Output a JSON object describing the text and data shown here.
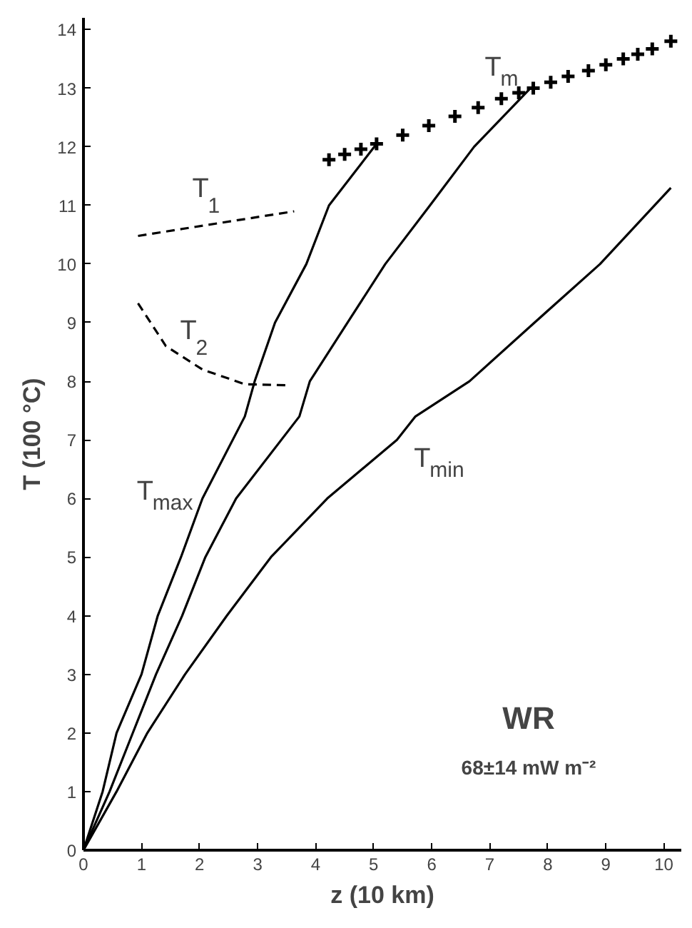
{
  "chart_data": {
    "type": "line",
    "xlabel": "z (10 km)",
    "ylabel": "T (100 °C)",
    "xlim": [
      0,
      10.3
    ],
    "ylim": [
      0,
      14.2
    ],
    "xticks": [
      0,
      1,
      2,
      3,
      4,
      5,
      6,
      7,
      8,
      9,
      10
    ],
    "yticks": [
      0,
      1,
      2,
      3,
      4,
      5,
      6,
      7,
      8,
      9,
      10,
      11,
      12,
      13,
      14
    ],
    "grid": false,
    "series": [
      {
        "name": "T$_{max}$",
        "color": "#000000",
        "line_style": "solid",
        "x": [
          0,
          0.33,
          0.57,
          1.0,
          1.28,
          1.68,
          2.05,
          2.78,
          2.95,
          3.3,
          3.84,
          4.23,
          5.05
        ],
        "values": [
          0,
          1,
          2,
          3,
          4,
          5,
          6,
          7.4,
          8,
          9,
          10,
          11,
          12.05
        ]
      },
      {
        "color": "#000000",
        "line_style": "solid",
        "x": [
          0,
          0.45,
          0.85,
          1.25,
          1.7,
          2.1,
          2.63,
          3.72,
          3.9,
          4.55,
          5.2,
          5.97,
          6.73,
          7.7
        ],
        "values": [
          0,
          1,
          2,
          3,
          4,
          5,
          6,
          7.4,
          8,
          9,
          10,
          11,
          12,
          13.0
        ]
      },
      {
        "name": "T$_{min}$",
        "color": "#000000",
        "line_style": "solid",
        "x": [
          0,
          0.57,
          1.1,
          1.75,
          2.47,
          3.23,
          4.2,
          5.4,
          5.72,
          6.65,
          7.77,
          8.9,
          10.12
        ],
        "values": [
          0,
          1,
          2,
          3,
          4,
          5,
          6,
          7,
          7.4,
          8,
          9,
          10,
          11.3
        ]
      },
      {
        "name": "T$_{1}$",
        "color": "#000000",
        "line_style": "dashed",
        "x": [
          0.94,
          3.63
        ],
        "values": [
          10.48,
          10.9
        ]
      },
      {
        "name": "T$_{2}$",
        "color": "#000000",
        "line_style": "dashed",
        "x": [
          0.94,
          1.42,
          2.05,
          2.78,
          3.55
        ],
        "values": [
          9.33,
          8.6,
          8.2,
          7.95,
          7.93
        ]
      },
      {
        "name": "T$_{m}$",
        "type": "scatter",
        "marker": "cross",
        "color": "#000000",
        "x": [
          4.23,
          4.5,
          4.78,
          5.05,
          5.5,
          5.95,
          6.4,
          6.8,
          7.2,
          7.5,
          7.75,
          8.05,
          8.35,
          8.7,
          9.0,
          9.3,
          9.55,
          9.8,
          10.12
        ],
        "values": [
          11.78,
          11.87,
          11.96,
          12.05,
          12.2,
          12.36,
          12.52,
          12.67,
          12.82,
          12.92,
          13.0,
          13.1,
          13.2,
          13.3,
          13.4,
          13.5,
          13.58,
          13.67,
          13.8
        ]
      }
    ],
    "annotations": [
      "WR",
      "68±14 mW m⁻²"
    ]
  }
}
